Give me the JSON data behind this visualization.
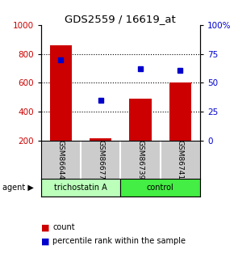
{
  "title": "GDS2559 / 16619_at",
  "samples": [
    "GSM86644",
    "GSM86677",
    "GSM86739",
    "GSM86741"
  ],
  "bar_values": [
    860,
    215,
    490,
    600
  ],
  "percentile_values": [
    70,
    35,
    62,
    61
  ],
  "bar_color": "#cc0000",
  "dot_color": "#0000cc",
  "ylim_left": [
    200,
    1000
  ],
  "ylim_right": [
    0,
    100
  ],
  "yticks_left": [
    200,
    400,
    600,
    800,
    1000
  ],
  "yticks_right": [
    0,
    25,
    50,
    75,
    100
  ],
  "grid_values": [
    400,
    600,
    800
  ],
  "agents": [
    {
      "label": "trichostatin A",
      "cols": [
        0,
        1
      ],
      "color": "#bbffbb"
    },
    {
      "label": "control",
      "cols": [
        2,
        3
      ],
      "color": "#44ee44"
    }
  ],
  "agent_label": "agent",
  "legend_count_label": "count",
  "legend_pct_label": "percentile rank within the sample",
  "bar_width": 0.55,
  "label_box_color": "#cccccc",
  "background_color": "#ffffff"
}
